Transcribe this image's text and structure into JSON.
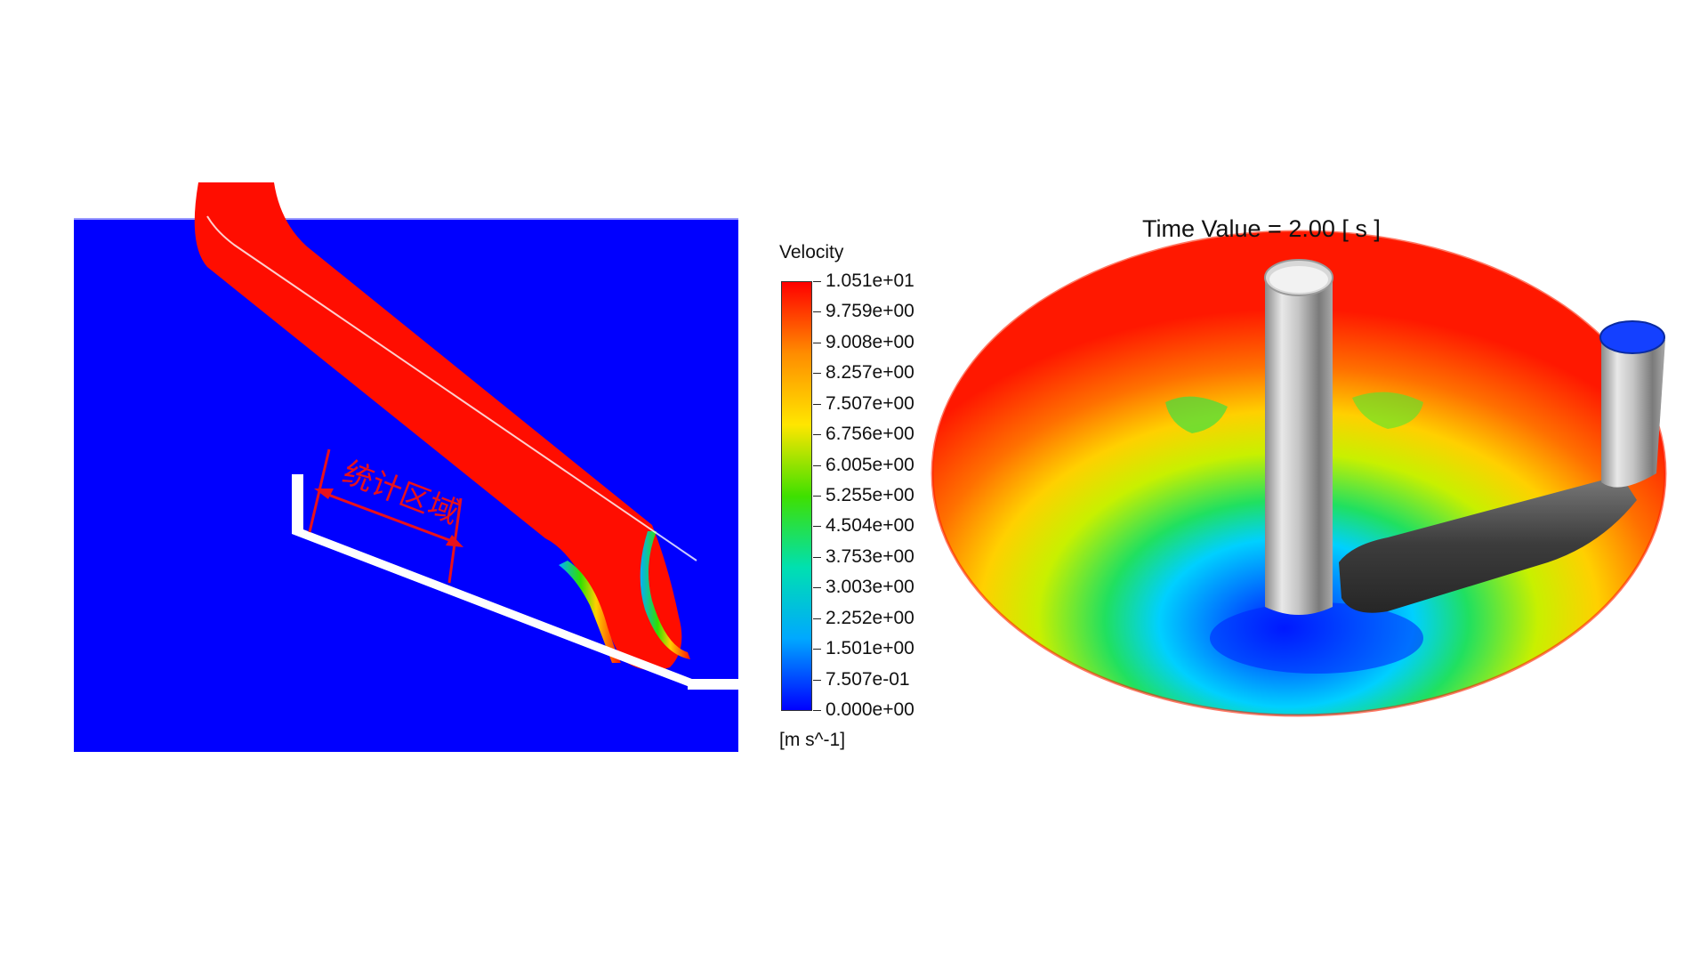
{
  "left_panel": {
    "annotation": "统计区域",
    "colors": {
      "fluid": "#0000ff",
      "jet": "#ff0d00",
      "annotation": "#e8111b"
    }
  },
  "legend": {
    "title": "Velocity",
    "unit": "[m s^-1]",
    "max_value": 10.51,
    "min_value": 0,
    "labels": [
      "1.051e+01",
      "9.759e+00",
      "9.008e+00",
      "8.257e+00",
      "7.507e+00",
      "6.756e+00",
      "6.005e+00",
      "5.255e+00",
      "4.504e+00",
      "3.753e+00",
      "3.003e+00",
      "2.252e+00",
      "1.501e+00",
      "7.507e-01",
      "0.000e+00"
    ],
    "gradient_colors": [
      "#ff0000",
      "#ff8c00",
      "#ffe600",
      "#3fe000",
      "#00e0b0",
      "#00a8ff",
      "#0000ff"
    ]
  },
  "right_panel": {
    "time_label": "Time Value = 2.00 [ s ]",
    "colors": {
      "pipe": "#b9b9b9",
      "outlet_cap": "#1440ff"
    }
  }
}
